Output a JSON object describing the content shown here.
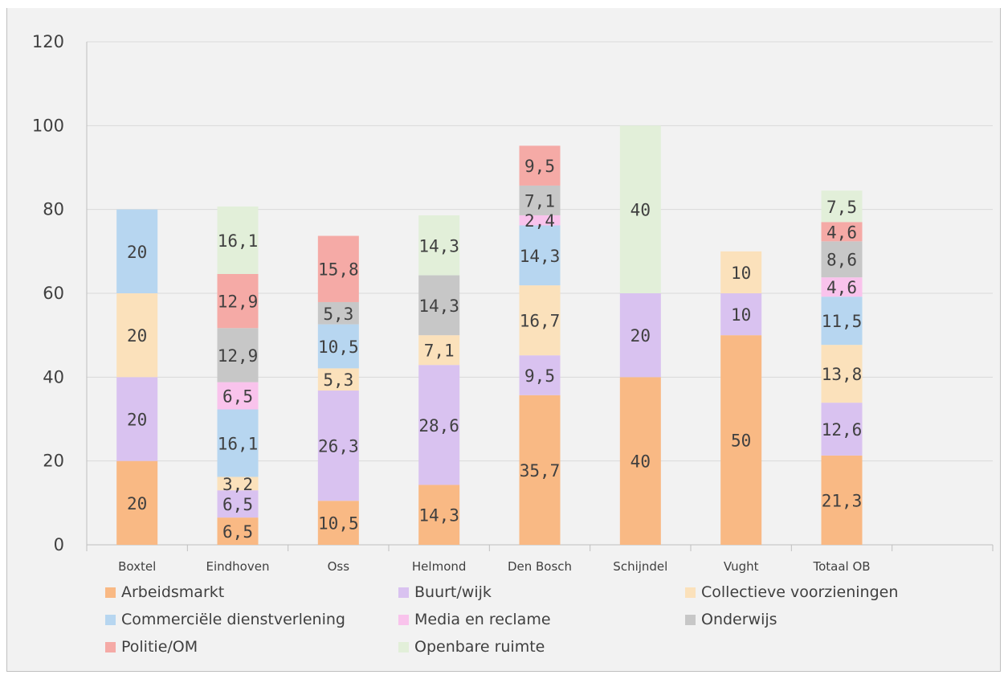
{
  "chart_data": {
    "type": "bar",
    "stacked": true,
    "title": "",
    "xlabel": "",
    "ylabel": "",
    "ylim": [
      0,
      120
    ],
    "yticks": [
      "0",
      "20",
      "40",
      "60",
      "80",
      "100",
      "120"
    ],
    "categories": [
      "Boxtel",
      "Eindhoven",
      "Oss",
      "Helmond",
      "Den Bosch",
      "Schijndel",
      "Vught",
      "Totaal OB"
    ],
    "grid": "horizontal",
    "legend_position": "bottom",
    "series": [
      {
        "name": "Arbeidsmarkt",
        "color": "#f9b984",
        "values": [
          20,
          6.5,
          10.5,
          14.3,
          35.7,
          40,
          50,
          21.3
        ],
        "labels": [
          "20",
          "6,5",
          "10,5",
          "14,3",
          "35,7",
          "40",
          "50",
          "21,3"
        ]
      },
      {
        "name": "Buurt/wijk",
        "color": "#d9c2f0",
        "values": [
          20,
          6.5,
          26.3,
          28.6,
          9.5,
          20,
          10,
          12.6
        ],
        "labels": [
          "20",
          "6,5",
          "26,3",
          "28,6",
          "9,5",
          "20",
          "10",
          "12,6"
        ]
      },
      {
        "name": "Collectieve voorzieningen",
        "color": "#fbe1bb",
        "values": [
          20,
          3.2,
          5.3,
          7.1,
          16.7,
          0,
          10,
          13.8
        ],
        "labels": [
          "20",
          "3,2",
          "5,3",
          "7,1",
          "16,7",
          "",
          "10",
          "13,8"
        ]
      },
      {
        "name": "Commerciële dienstverlening",
        "color": "#b7d6f0",
        "values": [
          20,
          16.1,
          10.5,
          0,
          14.3,
          0,
          0,
          11.5
        ],
        "labels": [
          "20",
          "16,1",
          "10,5",
          "",
          "14,3",
          "",
          "",
          "11,5"
        ]
      },
      {
        "name": "Media en reclame",
        "color": "#f9c3ec",
        "values": [
          0,
          6.5,
          0,
          0,
          2.4,
          0,
          0,
          4.6
        ],
        "labels": [
          "",
          "6,5",
          "",
          "",
          "2,4",
          "",
          "",
          "4,6"
        ]
      },
      {
        "name": "Onderwijs",
        "color": "#c7c7c7",
        "values": [
          0,
          12.9,
          5.3,
          14.3,
          7.1,
          0,
          0,
          8.6
        ],
        "labels": [
          "",
          "12,9",
          "5,3",
          "14,3",
          "7,1",
          "",
          "",
          "8,6"
        ]
      },
      {
        "name": "Politie/OM",
        "color": "#f5aaa6",
        "values": [
          0,
          12.9,
          15.8,
          0,
          9.5,
          0,
          0,
          4.6
        ],
        "labels": [
          "",
          "12,9",
          "15,8",
          "",
          "9,5",
          "",
          "",
          "4,6"
        ]
      },
      {
        "name": "Openbare ruimte",
        "color": "#e2efd9",
        "values": [
          0,
          16.1,
          0,
          14.3,
          0,
          40,
          0,
          7.5
        ],
        "labels": [
          "",
          "16,1",
          "",
          "14,3",
          "",
          "40",
          "",
          "7,5"
        ]
      }
    ]
  }
}
